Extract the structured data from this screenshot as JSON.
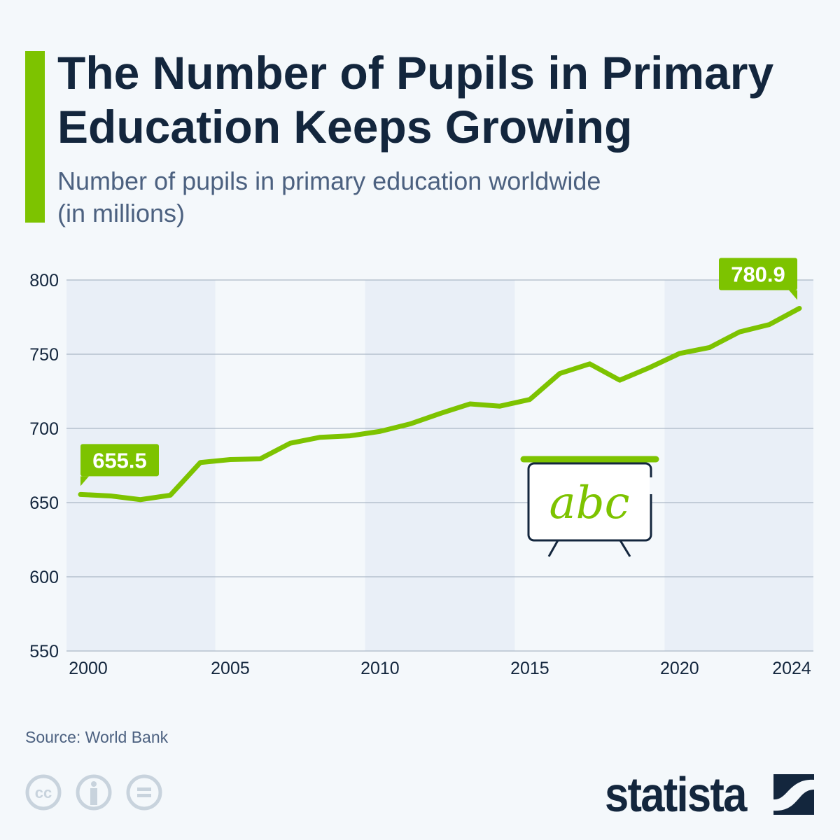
{
  "header": {
    "title": "The Number of Pupils in Primary Education Keeps Growing",
    "subtitle": "Number of pupils in primary education worldwide (in millions)"
  },
  "chart_data": {
    "type": "line",
    "title": "The Number of Pupils in Primary Education Keeps Growing",
    "subtitle": "Number of pupils in primary education worldwide (in millions)",
    "x": [
      2000,
      2001,
      2002,
      2003,
      2004,
      2005,
      2006,
      2007,
      2008,
      2009,
      2010,
      2011,
      2012,
      2013,
      2014,
      2015,
      2016,
      2017,
      2018,
      2019,
      2020,
      2021,
      2022,
      2023,
      2024
    ],
    "values": [
      655.5,
      654.5,
      652,
      655,
      677,
      679,
      679.5,
      690,
      694,
      695,
      698,
      703,
      710,
      716.5,
      715,
      719.5,
      737,
      743.5,
      732.5,
      741,
      750.5,
      754.5,
      765,
      770,
      780.9
    ],
    "xticks": [
      "2000",
      "2005",
      "2010",
      "2015",
      "2020",
      "2024"
    ],
    "yticks": [
      550,
      600,
      650,
      700,
      750,
      800
    ],
    "ylim": [
      550,
      800
    ],
    "xlim": [
      2000,
      2024
    ],
    "grid": true,
    "annotations": [
      {
        "x": 2000,
        "label": "655.5"
      },
      {
        "x": 2024,
        "label": "780.9"
      }
    ],
    "colors": {
      "line": "#7dc300",
      "band": "#e9eff7",
      "grid": "#9aa8ba",
      "text": "#13263d"
    }
  },
  "footer": {
    "source": "Source: World Bank",
    "brand": "statista",
    "license_icons": [
      "cc-icon",
      "attribution-icon",
      "no-derivatives-icon"
    ]
  }
}
